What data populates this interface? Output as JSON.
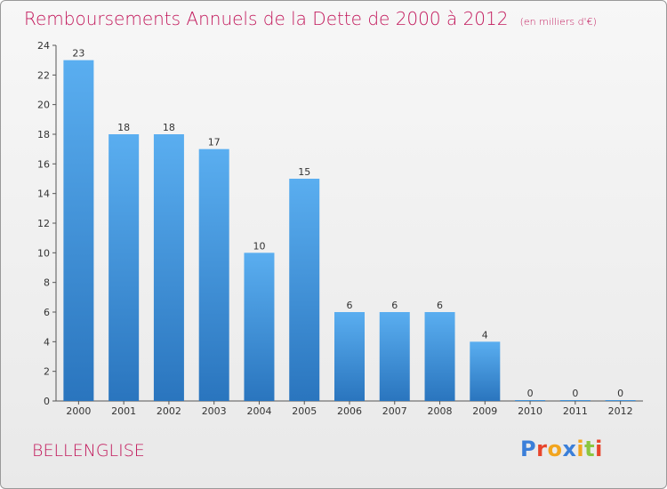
{
  "chart_data": {
    "type": "bar",
    "title": "Remboursements Annuels de la Dette de 2000 à 2012",
    "unit_label": "(en milliers d'€)",
    "categories": [
      "2000",
      "2001",
      "2002",
      "2003",
      "2004",
      "2005",
      "2006",
      "2007",
      "2008",
      "2009",
      "2010",
      "2011",
      "2012"
    ],
    "values": [
      23,
      18,
      18,
      17,
      10,
      15,
      6,
      6,
      6,
      4,
      0,
      0,
      0
    ],
    "ylim": [
      0,
      24
    ],
    "yticks": [
      0,
      2,
      4,
      6,
      8,
      10,
      12,
      14,
      16,
      18,
      20,
      22,
      24
    ],
    "grid": false,
    "bar_color": "#4d9fe0",
    "bar_color_dark": "#2b78c2"
  },
  "commune": "BELLENGLISE",
  "logo": {
    "text": "Proxiti",
    "colors": [
      "#3b7fd9",
      "#e8452c",
      "#f2a51f",
      "#3b7fd9",
      "#f2a51f",
      "#8cc63f",
      "#e8452c"
    ]
  },
  "colors": {
    "title": "#c2185b",
    "axis": "#555555"
  }
}
